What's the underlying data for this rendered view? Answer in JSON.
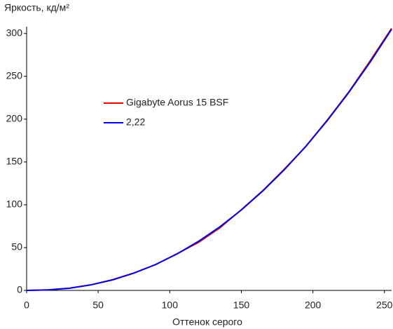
{
  "chart_data": {
    "type": "line",
    "y_label": "Яркость, кд/м²",
    "x_label": "Оттенок серого",
    "x": [
      0,
      15,
      30,
      45,
      60,
      75,
      90,
      105,
      120,
      135,
      150,
      165,
      180,
      195,
      210,
      225,
      240,
      255
    ],
    "series": [
      {
        "name": "Gigabyte Aorus 15 BSF",
        "color": "#e00000",
        "values": [
          0,
          0.6,
          2.7,
          6.6,
          12.5,
          20.4,
          30.0,
          42.8,
          56.0,
          73.0,
          94.2,
          116.5,
          141.5,
          168.0,
          198.8,
          231.5,
          268.0,
          306
        ]
      },
      {
        "name": "2,22",
        "color": "#0000e0",
        "values": [
          0,
          0.57,
          2.6,
          6.5,
          12.3,
          20.2,
          30.2,
          42.5,
          57.2,
          74.3,
          93.9,
          116.1,
          140.8,
          168.1,
          198.2,
          231.0,
          266.6,
          305
        ]
      }
    ],
    "xlim": [
      0,
      255
    ],
    "ylim": [
      0,
      308
    ],
    "xticks": [
      0,
      50,
      100,
      150,
      200,
      250
    ],
    "yticks": [
      0,
      50,
      100,
      150,
      200,
      250,
      300
    ]
  }
}
